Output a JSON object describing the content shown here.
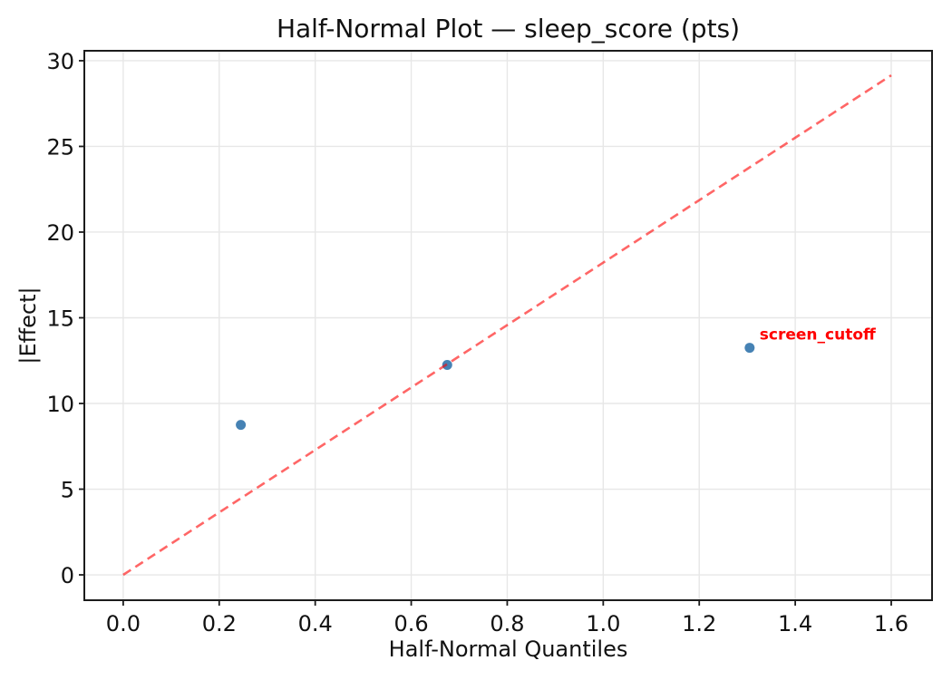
{
  "figure": {
    "background": "#ffffff"
  },
  "chart_data": {
    "type": "scatter",
    "title": "Half-Normal Plot — sleep_score (pts)",
    "xlabel": "Half-Normal Quantiles",
    "ylabel": "|Effect|",
    "xlim": [
      -0.081,
      1.685
    ],
    "ylim": [
      -1.48,
      30.58
    ],
    "x_ticks": [
      0.0,
      0.2,
      0.4,
      0.6,
      0.8,
      1.0,
      1.2,
      1.4,
      1.6
    ],
    "x_tick_labels": [
      "0.0",
      "0.2",
      "0.4",
      "0.6",
      "0.8",
      "1.0",
      "1.2",
      "1.4",
      "1.6"
    ],
    "y_ticks": [
      0,
      5,
      10,
      15,
      20,
      25,
      30
    ],
    "y_tick_labels": [
      "0",
      "5",
      "10",
      "15",
      "20",
      "25",
      "30"
    ],
    "grid": true,
    "legend": false,
    "series": [
      {
        "name": "effects",
        "type": "scatter",
        "color": "#4682b4",
        "points": [
          {
            "x": 0.245,
            "y": 8.75
          },
          {
            "x": 0.675,
            "y": 12.25
          },
          {
            "x": 1.305,
            "y": 13.25
          }
        ]
      },
      {
        "name": "half-normal-reference-line",
        "type": "line",
        "style": "dashed",
        "color": "#ff0000",
        "opacity": 0.6,
        "x": [
          0.0,
          1.6
        ],
        "y": [
          0.0,
          29.15
        ]
      }
    ],
    "annotation": {
      "text": "screen_cutoff",
      "x": 1.305,
      "y": 13.25,
      "color": "#ff0000",
      "bold": true
    },
    "colors": {
      "spine": "#1c1c1c",
      "grid": "#e7e7e7",
      "tick_text": "#111111"
    }
  }
}
